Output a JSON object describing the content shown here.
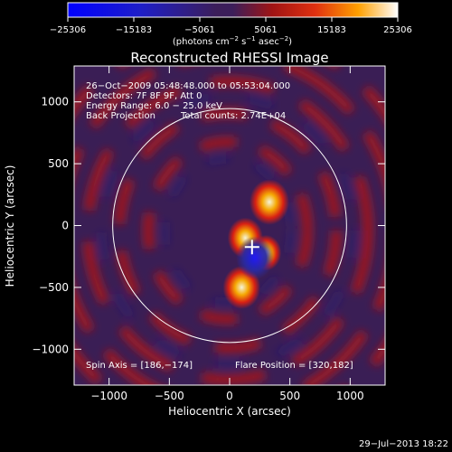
{
  "chart_data": {
    "type": "heatmap",
    "title": "Reconstructed RHESSI Image",
    "xlabel": "Heliocentric X (arcsec)",
    "ylabel": "Heliocentric Y (arcsec)",
    "xlim": [
      -1290,
      1290
    ],
    "ylim": [
      -1290,
      1290
    ],
    "x_ticks": [
      -1000,
      -500,
      0,
      500,
      1000
    ],
    "y_ticks": [
      1000,
      500,
      0,
      -500,
      -1000
    ],
    "x_tick_labels": [
      "−1000",
      "−500",
      "0",
      "500",
      "1000"
    ],
    "y_tick_labels": [
      "1000",
      "500",
      "0",
      "−500",
      "−1000"
    ],
    "colorbar": {
      "min": -25306,
      "max": 25306,
      "ticks": [
        -25306,
        -15183,
        -5061,
        5061,
        15183,
        25306
      ],
      "tick_labels": [
        "−25306",
        "−15183",
        "−5061",
        "5061",
        "15183",
        "25306"
      ],
      "units_main": "(photons cm",
      "units_exp1": "−2",
      "units_mid": " s",
      "units_exp2": "−1",
      "units_mid2": " asec",
      "units_exp3": "−2",
      "units_end": ")"
    },
    "solar_limb_radius_arcsec": 970,
    "annotations": {
      "time_range": "26−Oct−2009 05:48:48.000 to 05:53:04.000",
      "detectors": "Detectors: 7F 8F 9F, Att 0",
      "energy": "Energy Range: 6.0 − 25.0 keV",
      "method": "Back Projection",
      "counts": "Total counts: 2.74E+04",
      "spin_axis": "Spin Axis = [186,−174]",
      "flare_position": "Flare Position = [320,182]"
    },
    "flare_marker": [
      186,
      -174
    ],
    "features": [
      {
        "x": 330,
        "y": 190,
        "strength": 1.0,
        "kind": "peak"
      },
      {
        "x": 130,
        "y": -100,
        "strength": 0.8,
        "kind": "peak"
      },
      {
        "x": 300,
        "y": -220,
        "strength": 0.6,
        "kind": "peak"
      },
      {
        "x": 100,
        "y": -500,
        "strength": 0.9,
        "kind": "peak"
      },
      {
        "x": 210,
        "y": -260,
        "strength": -0.9,
        "kind": "trough"
      }
    ],
    "date_stamp": "29−Jul−2013 18:22"
  },
  "colors": {
    "background": "#000000",
    "negative": "#1e1eff",
    "mid": "#3a1e55",
    "positive_low": "#c01010",
    "positive_high": "#ffffff"
  }
}
